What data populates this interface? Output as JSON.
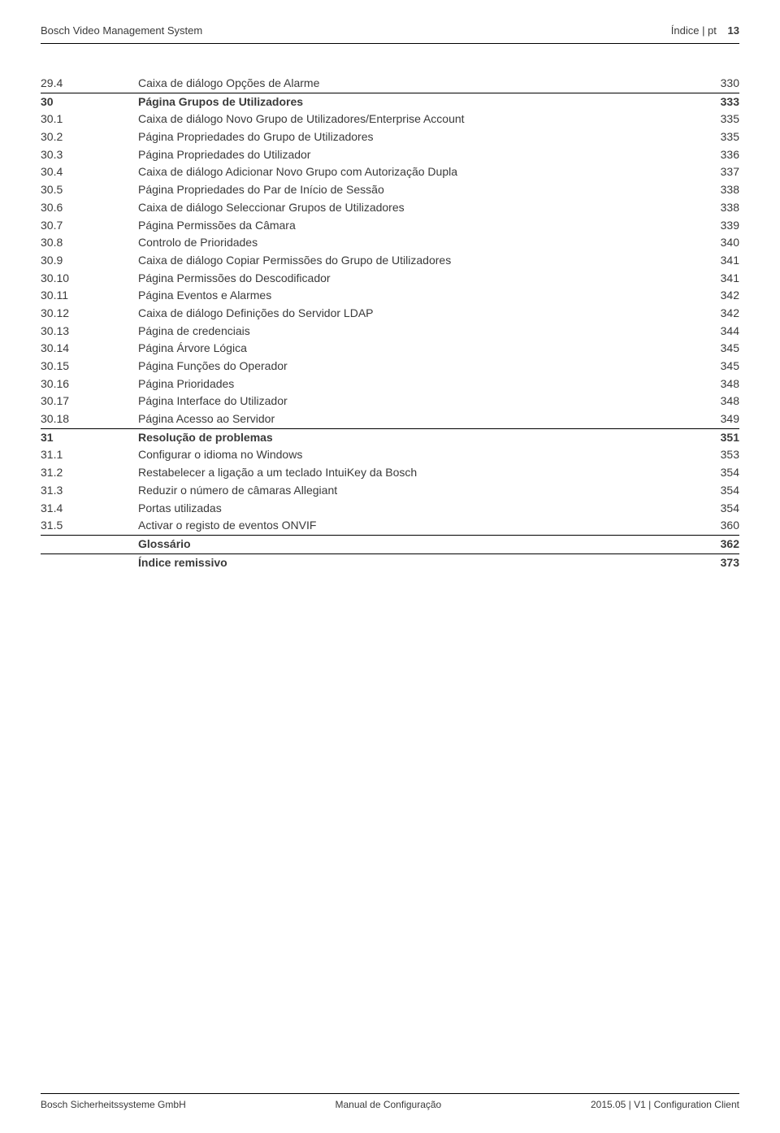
{
  "header": {
    "left": "Bosch Video Management System",
    "right_label": "Índice | pt",
    "page_number": "13"
  },
  "toc": {
    "rows": [
      {
        "num": "29.4",
        "title": "Caixa de diálogo Opções de Alarme",
        "page": "330",
        "bold": false,
        "section": false
      },
      {
        "num": "30",
        "title": "Página Grupos de Utilizadores",
        "page": "333",
        "bold": true,
        "section": true
      },
      {
        "num": "30.1",
        "title": "Caixa de diálogo Novo Grupo de Utilizadores/Enterprise Account",
        "page": "335",
        "bold": false,
        "section": false
      },
      {
        "num": "30.2",
        "title": "Página Propriedades do Grupo de Utilizadores",
        "page": "335",
        "bold": false,
        "section": false
      },
      {
        "num": "30.3",
        "title": "Página Propriedades do Utilizador",
        "page": "336",
        "bold": false,
        "section": false
      },
      {
        "num": "30.4",
        "title": "Caixa de diálogo Adicionar Novo Grupo com Autorização Dupla",
        "page": "337",
        "bold": false,
        "section": false
      },
      {
        "num": "30.5",
        "title": "Página Propriedades do Par de Início de Sessão",
        "page": "338",
        "bold": false,
        "section": false
      },
      {
        "num": "30.6",
        "title": "Caixa de diálogo Seleccionar Grupos de Utilizadores",
        "page": "338",
        "bold": false,
        "section": false
      },
      {
        "num": "30.7",
        "title": "Página Permissões da Câmara",
        "page": "339",
        "bold": false,
        "section": false
      },
      {
        "num": "30.8",
        "title": "Controlo de Prioridades",
        "page": "340",
        "bold": false,
        "section": false
      },
      {
        "num": "30.9",
        "title": "Caixa de diálogo Copiar Permissões do Grupo de Utilizadores",
        "page": "341",
        "bold": false,
        "section": false
      },
      {
        "num": "30.10",
        "title": "Página Permissões do Descodificador",
        "page": "341",
        "bold": false,
        "section": false
      },
      {
        "num": "30.11",
        "title": "Página Eventos e Alarmes",
        "page": "342",
        "bold": false,
        "section": false
      },
      {
        "num": "30.12",
        "title": "Caixa de diálogo Definições do Servidor LDAP",
        "page": "342",
        "bold": false,
        "section": false
      },
      {
        "num": "30.13",
        "title": "Página de credenciais",
        "page": "344",
        "bold": false,
        "section": false
      },
      {
        "num": "30.14",
        "title": "Página Árvore Lógica",
        "page": "345",
        "bold": false,
        "section": false
      },
      {
        "num": "30.15",
        "title": "Página Funções do Operador",
        "page": "345",
        "bold": false,
        "section": false
      },
      {
        "num": "30.16",
        "title": "Página Prioridades",
        "page": "348",
        "bold": false,
        "section": false
      },
      {
        "num": "30.17",
        "title": "Página Interface do Utilizador",
        "page": "348",
        "bold": false,
        "section": false
      },
      {
        "num": "30.18",
        "title": "Página Acesso ao Servidor",
        "page": "349",
        "bold": false,
        "section": false
      },
      {
        "num": "31",
        "title": "Resolução de problemas",
        "page": "351",
        "bold": true,
        "section": true
      },
      {
        "num": "31.1",
        "title": "Configurar o idioma no Windows",
        "page": "353",
        "bold": false,
        "section": false
      },
      {
        "num": "31.2",
        "title": "Restabelecer a ligação a um teclado IntuiKey da Bosch",
        "page": "354",
        "bold": false,
        "section": false
      },
      {
        "num": "31.3",
        "title": "Reduzir o número de câmaras Allegiant",
        "page": "354",
        "bold": false,
        "section": false
      },
      {
        "num": "31.4",
        "title": "Portas utilizadas",
        "page": "354",
        "bold": false,
        "section": false
      },
      {
        "num": "31.5",
        "title": "Activar o registo de eventos ONVIF",
        "page": "360",
        "bold": false,
        "section": false
      },
      {
        "num": "",
        "title": "Glossário",
        "page": "362",
        "bold": true,
        "section": true
      },
      {
        "num": "",
        "title": "Índice remissivo",
        "page": "373",
        "bold": true,
        "section": true
      }
    ]
  },
  "footer": {
    "left": "Bosch Sicherheitssysteme GmbH",
    "center": "Manual de Configuração",
    "right": "2015.05 | V1 | Configuration Client"
  }
}
